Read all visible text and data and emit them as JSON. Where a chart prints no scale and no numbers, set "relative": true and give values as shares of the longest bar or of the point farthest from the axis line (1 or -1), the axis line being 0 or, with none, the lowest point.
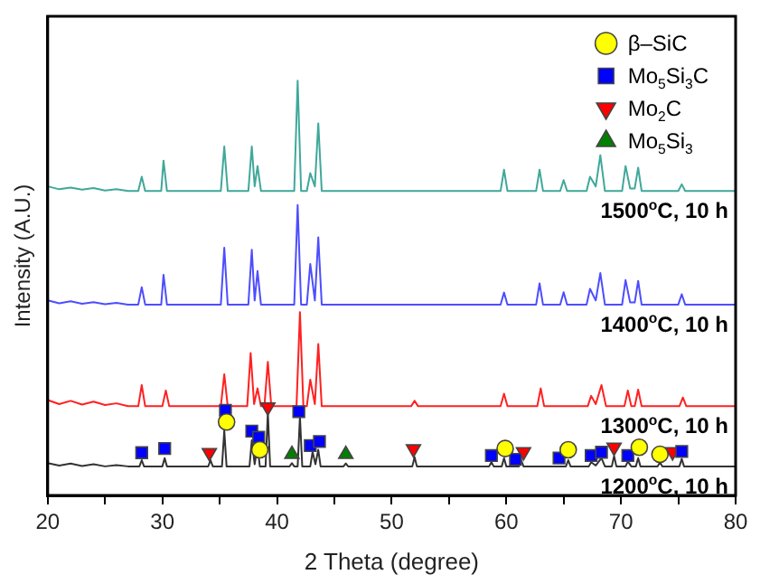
{
  "chart_data": {
    "type": "line",
    "xlabel": "2 Theta (degree)",
    "ylabel": "Intensity (A.U.)",
    "relative": true,
    "xlim": [
      20,
      80
    ],
    "xticks": [
      20,
      {
        "value": 25,
        "label": null
      },
      30,
      {
        "value": 35,
        "label": null
      },
      40,
      {
        "value": 45,
        "label": null
      },
      50,
      {
        "value": 55,
        "label": null
      },
      60,
      {
        "value": 65,
        "label": null
      },
      70,
      {
        "value": 75,
        "label": null
      },
      80
    ],
    "grid": false,
    "legend": "top right",
    "marker": "none",
    "line_style": "solid",
    "series": [
      {
        "name": "1500$^{o}$C, 10 h",
        "color": "#3fa89a",
        "x": [
          20,
          21,
          22,
          23,
          24,
          25,
          26,
          27,
          27.9,
          28.2,
          28.5,
          29.9,
          30.1,
          30.4,
          35.1,
          35.4,
          35.7,
          37.5,
          37.8,
          38.05,
          38.3,
          38.6,
          41.5,
          41.8,
          42.1,
          42.6,
          42.9,
          43.3,
          43.6,
          43.9,
          50,
          55,
          59.5,
          59.8,
          60.1,
          62.6,
          62.9,
          63.2,
          64.7,
          65,
          65.3,
          67,
          67.3,
          67.8,
          68.2,
          68.6,
          70.1,
          70.4,
          70.8,
          71.2,
          71.5,
          71.8,
          75,
          75.3,
          75.6,
          80
        ],
        "values": [
          0.745,
          0.738,
          0.742,
          0.737,
          0.741,
          0.735,
          0.738,
          0.734,
          0.734,
          0.768,
          0.734,
          0.734,
          0.807,
          0.734,
          0.734,
          0.841,
          0.734,
          0.734,
          0.841,
          0.745,
          0.794,
          0.734,
          0.734,
          1.0,
          0.734,
          0.734,
          0.777,
          0.745,
          0.897,
          0.734,
          0.734,
          0.734,
          0.734,
          0.785,
          0.734,
          0.734,
          0.785,
          0.734,
          0.734,
          0.76,
          0.734,
          0.734,
          0.768,
          0.745,
          0.82,
          0.734,
          0.734,
          0.794,
          0.74,
          0.74,
          0.79,
          0.734,
          0.734,
          0.75,
          0.734,
          0.734
        ]
      },
      {
        "name": "1400$^{o}$C, 10 h",
        "color": "#4d4dff",
        "x": [
          20,
          21,
          22,
          23,
          24,
          25,
          26,
          27,
          27.9,
          28.2,
          28.5,
          29.9,
          30.1,
          30.4,
          35.1,
          35.4,
          35.7,
          37.5,
          37.8,
          38.05,
          38.3,
          38.6,
          41.5,
          41.8,
          42.1,
          42.6,
          42.9,
          43.3,
          43.6,
          43.9,
          50,
          55,
          59.5,
          59.8,
          60.1,
          62.6,
          62.9,
          63.2,
          64.7,
          65,
          65.3,
          67,
          67.3,
          67.8,
          68.2,
          68.6,
          70.1,
          70.4,
          70.8,
          71.2,
          71.5,
          71.8,
          75,
          75.3,
          75.6,
          80
        ],
        "values": [
          0.47,
          0.463,
          0.468,
          0.462,
          0.466,
          0.461,
          0.464,
          0.46,
          0.46,
          0.502,
          0.46,
          0.46,
          0.532,
          0.46,
          0.46,
          0.597,
          0.46,
          0.46,
          0.592,
          0.47,
          0.541,
          0.46,
          0.46,
          0.7,
          0.46,
          0.46,
          0.558,
          0.47,
          0.622,
          0.46,
          0.46,
          0.46,
          0.46,
          0.489,
          0.46,
          0.46,
          0.511,
          0.46,
          0.46,
          0.49,
          0.46,
          0.46,
          0.498,
          0.47,
          0.536,
          0.46,
          0.46,
          0.519,
          0.465,
          0.465,
          0.517,
          0.46,
          0.46,
          0.485,
          0.46,
          0.46
        ]
      },
      {
        "name": "1300$^{o}$C, 10 h",
        "color": "#ff2020",
        "x": [
          20,
          21,
          22,
          23,
          24,
          25,
          26,
          27,
          27.9,
          28.2,
          28.5,
          30,
          30.3,
          30.6,
          35.1,
          35.4,
          35.7,
          37.4,
          37.7,
          38.0,
          38.3,
          38.6,
          38.9,
          39.2,
          39.5,
          41.7,
          42,
          42.3,
          42.6,
          42.9,
          43.3,
          43.6,
          43.9,
          51.7,
          52,
          52.3,
          59.5,
          59.8,
          60.1,
          62.7,
          63,
          63.3,
          67.1,
          67.4,
          67.8,
          68.3,
          68.7,
          70.3,
          70.6,
          70.9,
          71.2,
          71.5,
          71.8,
          75.1,
          75.4,
          75.7,
          80
        ],
        "values": [
          0.23,
          0.22,
          0.228,
          0.219,
          0.226,
          0.218,
          0.222,
          0.215,
          0.215,
          0.266,
          0.215,
          0.215,
          0.253,
          0.215,
          0.215,
          0.292,
          0.215,
          0.215,
          0.343,
          0.22,
          0.258,
          0.215,
          0.215,
          0.322,
          0.215,
          0.215,
          0.442,
          0.215,
          0.215,
          0.279,
          0.22,
          0.365,
          0.215,
          0.215,
          0.228,
          0.215,
          0.215,
          0.245,
          0.215,
          0.215,
          0.258,
          0.215,
          0.215,
          0.24,
          0.22,
          0.266,
          0.215,
          0.215,
          0.253,
          0.215,
          0.215,
          0.255,
          0.215,
          0.215,
          0.236,
          0.215,
          0.215
        ]
      },
      {
        "name": "1200$^{o}$C, 10 h",
        "color": "#333333",
        "x": [
          20,
          21,
          22,
          23,
          24,
          25,
          26,
          27,
          28,
          28.2,
          28.4,
          30,
          30.2,
          30.4,
          34,
          34.2,
          34.4,
          35.2,
          35.4,
          35.6,
          37.6,
          37.8,
          38.05,
          38.3,
          38.5,
          39,
          39.2,
          39.4,
          41.1,
          41.3,
          41.5,
          41.8,
          42,
          42.2,
          42.9,
          43.1,
          43.35,
          43.6,
          43.8,
          45.8,
          46,
          46.2,
          51.8,
          52,
          52.2,
          58.5,
          58.7,
          58.9,
          59.6,
          59.8,
          60,
          61.1,
          61.3,
          61.5,
          65.2,
          65.4,
          65.6,
          67.2,
          67.4,
          67.8,
          68.3,
          68.6,
          69.2,
          69.4,
          69.6,
          70.4,
          70.6,
          70.9,
          71.3,
          71.5,
          71.7,
          73.2,
          73.4,
          73.6,
          75.1,
          75.3,
          75.5,
          80
        ],
        "values": [
          0.078,
          0.072,
          0.077,
          0.071,
          0.075,
          0.07,
          0.073,
          0.07,
          0.07,
          0.085,
          0.07,
          0.07,
          0.09,
          0.07,
          0.07,
          0.085,
          0.07,
          0.07,
          0.156,
          0.07,
          0.07,
          0.133,
          0.075,
          0.12,
          0.07,
          0.07,
          0.2,
          0.07,
          0.07,
          0.078,
          0.07,
          0.07,
          0.19,
          0.07,
          0.07,
          0.105,
          0.075,
          0.11,
          0.07,
          0.07,
          0.077,
          0.07,
          0.07,
          0.092,
          0.07,
          0.07,
          0.08,
          0.07,
          0.07,
          0.09,
          0.07,
          0.07,
          0.085,
          0.07,
          0.07,
          0.085,
          0.07,
          0.07,
          0.08,
          0.072,
          0.09,
          0.07,
          0.07,
          0.095,
          0.07,
          0.07,
          0.082,
          0.07,
          0.07,
          0.09,
          0.07,
          0.07,
          0.08,
          0.07,
          0.07,
          0.088,
          0.07,
          0.07
        ]
      },
      {
        "type": "scatter",
        "name": "β–SiC",
        "color": "#ffff00",
        "marker": "circle",
        "x": [
          35.6,
          38.5,
          59.9,
          65.4,
          71.6,
          73.4
        ],
        "values": [
          0.177,
          0.11,
          0.113,
          0.11,
          0.116,
          0.099
        ]
      },
      {
        "type": "scatter",
        "name": "Mo$_{5}$Si$_{3}$C",
        "color": "#0000ff",
        "marker": "square",
        "x": [
          28.2,
          30.2,
          35.5,
          37.8,
          38.4,
          41.9,
          42.9,
          43.7,
          58.7,
          60.8,
          64.6,
          67.4,
          68.3,
          70.6,
          75.3
        ],
        "values": [
          0.103,
          0.113,
          0.205,
          0.155,
          0.14,
          0.202,
          0.12,
          0.13,
          0.096,
          0.087,
          0.09,
          0.096,
          0.104,
          0.096,
          0.106
        ]
      },
      {
        "type": "scatter",
        "name": "Mo$_{2}$C",
        "color": "#ff0000",
        "marker": "triangle_down",
        "x": [
          34.1,
          39.2,
          51.9,
          61.5,
          69.4,
          74.5
        ],
        "values": [
          0.103,
          0.213,
          0.112,
          0.105,
          0.116,
          0.105
        ]
      },
      {
        "type": "scatter",
        "name": "Mo$_{5}$Si$_{3}$",
        "color": "#008000",
        "marker": "triangle",
        "x": [
          41.3,
          46.0
        ],
        "values": [
          0.099,
          0.099
        ]
      }
    ]
  }
}
